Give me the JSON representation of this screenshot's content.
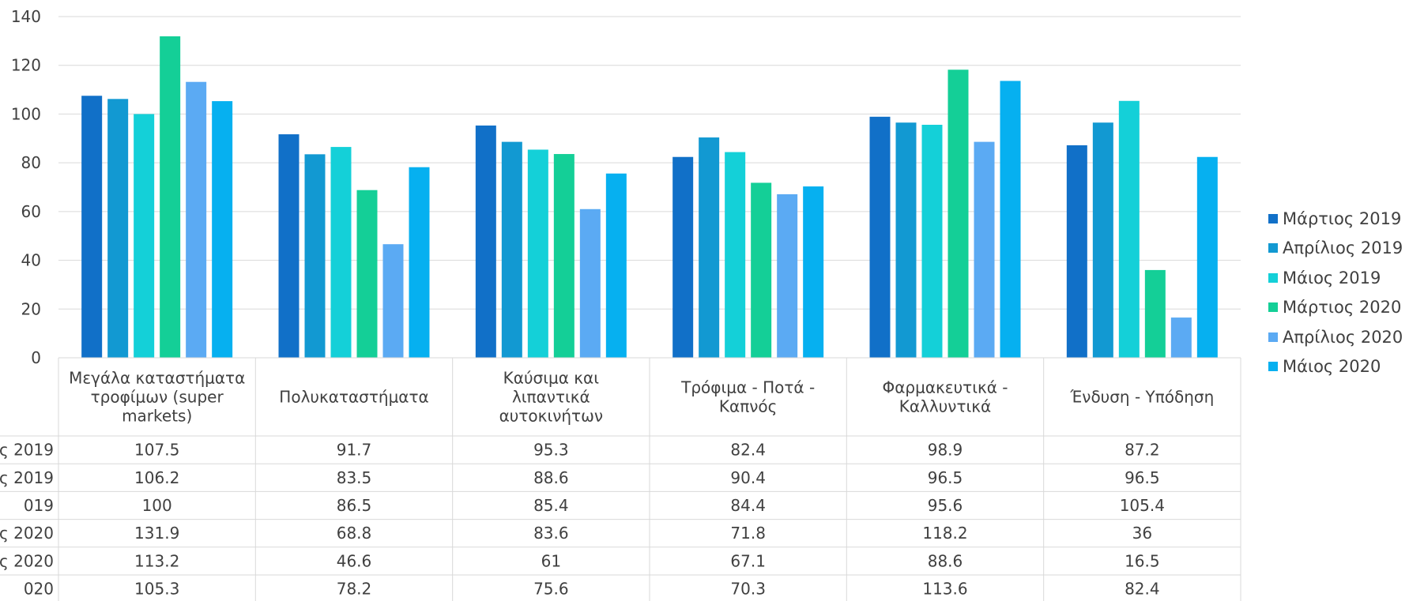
{
  "chart_data": {
    "type": "bar",
    "title": "",
    "xlabel": "",
    "ylabel": "",
    "ylim": [
      0,
      140
    ],
    "yticks": [
      0,
      20,
      40,
      60,
      80,
      100,
      120,
      140
    ],
    "grid": true,
    "legend_position": "right",
    "categories": [
      [
        "Μεγάλα καταστήματα",
        "τροφίμων (super",
        "markets)"
      ],
      [
        "Πολυκαταστήματα"
      ],
      [
        "Καύσιμα και",
        "λιπαντικά",
        "αυτοκινήτων"
      ],
      [
        "Τρόφιμα - Ποτά -",
        "Καπνός"
      ],
      [
        "Φαρμακευτικά -",
        "Καλλυντικά"
      ],
      [
        "Ένδυση - Υπόδηση"
      ]
    ],
    "series": [
      {
        "name": "Μάρτιος 2019",
        "row_label": "ς 2019",
        "color": "#1170C8",
        "values": [
          107.5,
          91.7,
          95.3,
          82.4,
          98.9,
          87.2
        ]
      },
      {
        "name": "Απρίλιος 2019",
        "row_label": "ς 2019",
        "color": "#1299D2",
        "values": [
          106.2,
          83.5,
          88.6,
          90.4,
          96.5,
          96.5
        ]
      },
      {
        "name": "Μάιος 2019",
        "row_label": "019",
        "color": "#14D0D8",
        "values": [
          100,
          86.5,
          85.4,
          84.4,
          95.6,
          105.4
        ]
      },
      {
        "name": "Μάρτιος 2020",
        "row_label": "ς 2020",
        "color": "#14CF97",
        "values": [
          131.9,
          68.8,
          83.6,
          71.8,
          118.2,
          36
        ]
      },
      {
        "name": "Απρίλιος 2020",
        "row_label": "ς 2020",
        "color": "#5BAAF3",
        "values": [
          113.2,
          46.6,
          61,
          67.1,
          88.6,
          16.5
        ]
      },
      {
        "name": "Μάιος 2020",
        "row_label": "020",
        "color": "#06B0F0",
        "values": [
          105.3,
          78.2,
          75.6,
          70.3,
          113.6,
          82.4
        ]
      }
    ]
  }
}
